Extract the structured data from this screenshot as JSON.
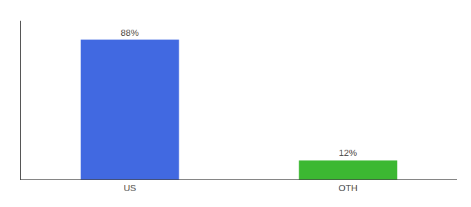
{
  "chart_data": {
    "type": "bar",
    "categories": [
      "US",
      "OTH"
    ],
    "values": [
      88,
      12
    ],
    "value_labels": [
      "88%",
      "12%"
    ],
    "colors": [
      "#4169E1",
      "#3CB832"
    ],
    "ylim": [
      0,
      100
    ],
    "grid": false,
    "data_labels": true,
    "tick_labels": "x"
  }
}
